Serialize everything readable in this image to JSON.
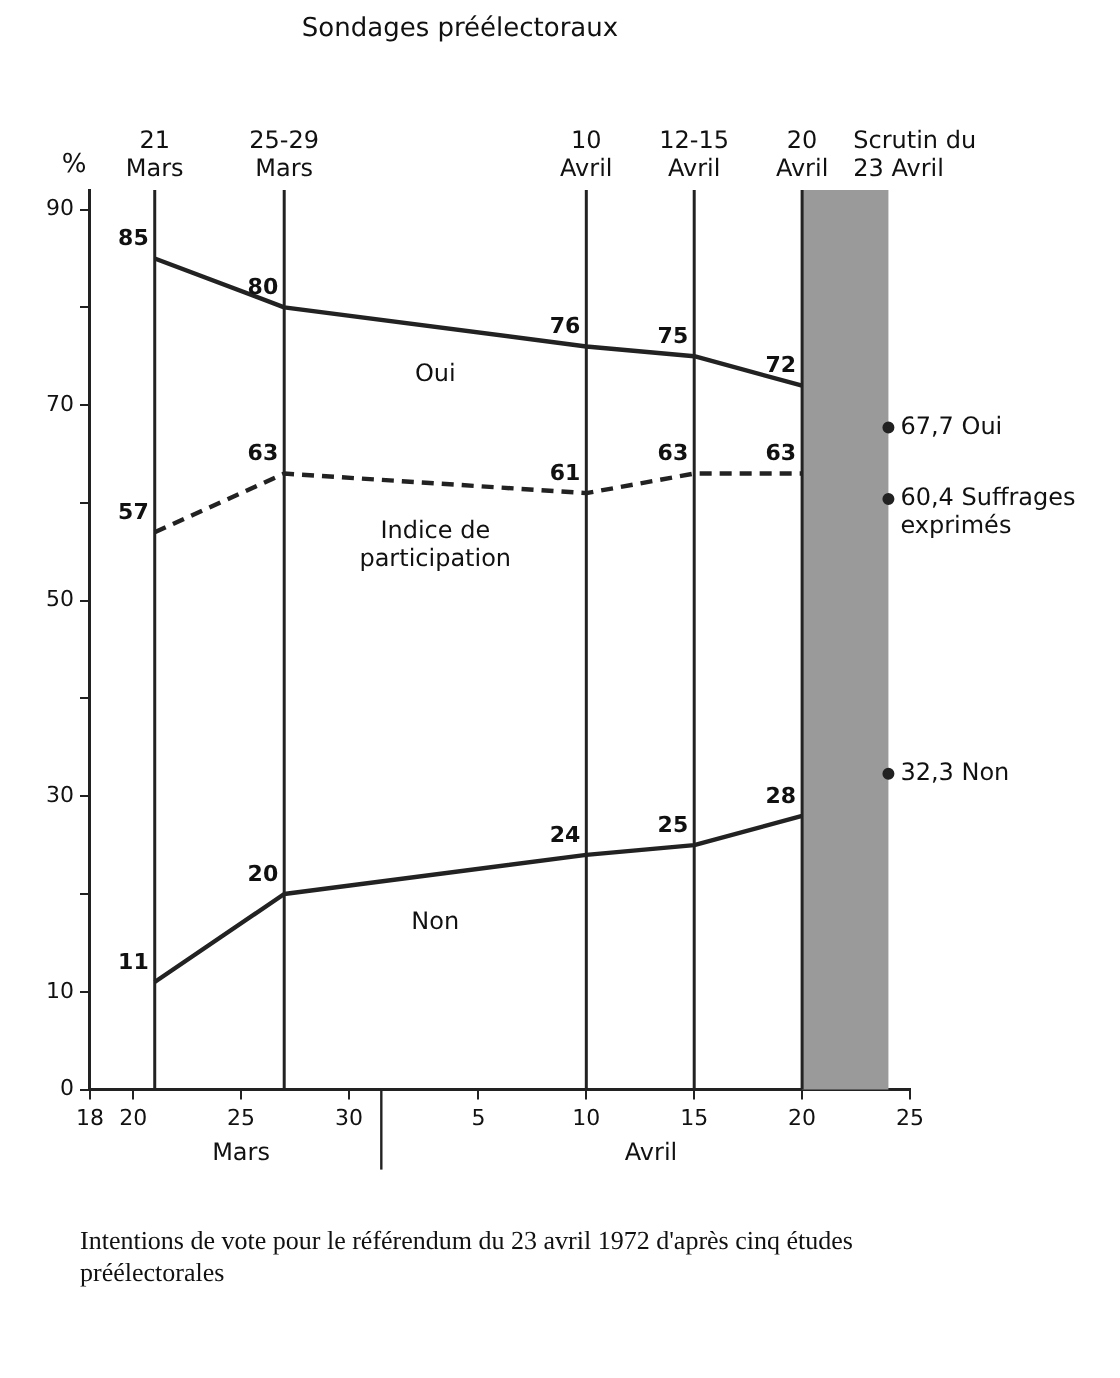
{
  "chart_data": {
    "type": "line",
    "title": "Sondages préélectoraux",
    "ylabel": "%",
    "xlim": [
      "1972-03-18",
      "1972-04-25"
    ],
    "xticks": [
      {
        "value": "1972-03-18",
        "label": "18"
      },
      {
        "value": "1972-03-20",
        "label": "20"
      },
      {
        "value": "1972-03-25",
        "label": "25"
      },
      {
        "value": "1972-03-30",
        "label": "30"
      },
      {
        "value": "1972-04-05",
        "label": "5"
      },
      {
        "value": "1972-04-10",
        "label": "10"
      },
      {
        "value": "1972-04-15",
        "label": "15"
      },
      {
        "value": "1972-04-20",
        "label": "20"
      },
      {
        "value": "1972-04-25",
        "label": "25"
      }
    ],
    "ylim": [
      0,
      92
    ],
    "yticks": [
      0,
      10,
      {
        "value": 20,
        "label": null
      },
      30,
      {
        "value": 40,
        "label": null
      },
      50,
      {
        "value": 60,
        "label": null
      },
      70,
      {
        "value": 80,
        "label": null
      },
      90
    ],
    "x": [
      "1972-03-21",
      "1972-03-27",
      "1972-04-10",
      "1972-04-15",
      "1972-04-20"
    ],
    "series": [
      {
        "name": "Oui",
        "color": "#222222",
        "values": [
          85,
          80,
          76,
          75,
          72
        ],
        "line_style": "solid"
      },
      {
        "name": "Indice de participation",
        "color": "#222222",
        "values": [
          57,
          63,
          61,
          63,
          63
        ],
        "line_style": "dashed"
      },
      {
        "name": "Non",
        "color": "#222222",
        "values": [
          11,
          20,
          24,
          25,
          28
        ],
        "line_style": "solid"
      },
      {
        "type": "scatter",
        "color": "#222222",
        "x": [
          "1972-04-24",
          "1972-04-24",
          "1972-04-24"
        ],
        "values": [
          67.7,
          60.4,
          32.3
        ],
        "value_labels": [
          "67,7 Oui",
          "60,4 Suffrages exprimés",
          "32,3 Non"
        ],
        "marker": "circle"
      }
    ],
    "data_labels": true,
    "marker": "none",
    "grid": false,
    "legend": false,
    "ref_lines": [
      {
        "axis": "x",
        "value": "1972-03-21",
        "label": "21 Mars"
      },
      {
        "axis": "x",
        "value": "1972-03-27",
        "label": "25-29 Mars"
      },
      {
        "axis": "x",
        "value": "1972-04-10",
        "label": "10 Avril"
      },
      {
        "axis": "x",
        "value": "1972-04-15",
        "label": "12-15 Avril"
      },
      {
        "axis": "x",
        "value": "1972-04-20",
        "label": "20 Avril"
      }
    ],
    "bands": [
      {
        "axis": "x",
        "from": "1972-04-20",
        "to": "1972-04-24",
        "label": "Scrutin du 23 Avril",
        "color": "#9a9a9a"
      }
    ],
    "annotations": [
      "Mars",
      "Avril",
      "Intentions de vote pour le référendum du 23 avril 1972 d'après cinq études préélectorales"
    ]
  }
}
